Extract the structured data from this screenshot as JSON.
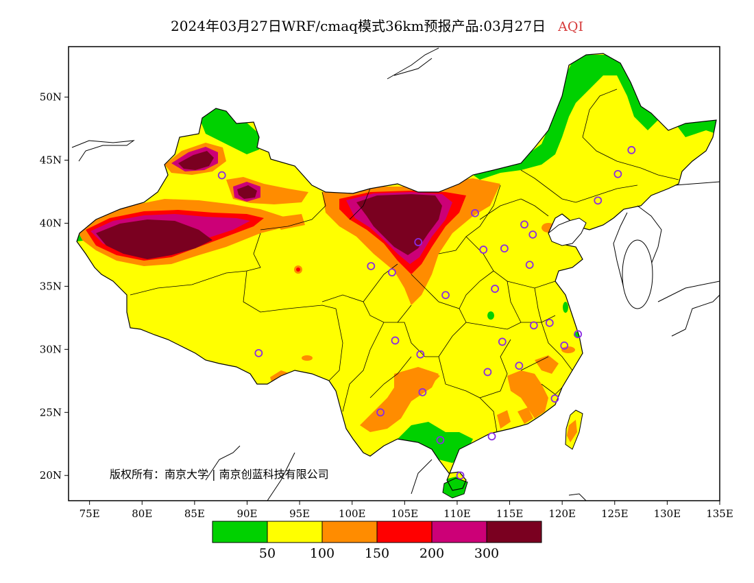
{
  "title": {
    "main": "2024年03月27日WRF/cmaq模式36km预报产品:03月27日",
    "variable": "AQI"
  },
  "axes": {
    "lon": {
      "min": 73,
      "max": 135,
      "ticks": [
        75,
        80,
        85,
        90,
        95,
        100,
        105,
        110,
        115,
        120,
        125,
        130,
        135
      ],
      "labels": [
        "75E",
        "80E",
        "85E",
        "90E",
        "95E",
        "100E",
        "105E",
        "110E",
        "115E",
        "120E",
        "125E",
        "130E",
        "135E"
      ]
    },
    "lat": {
      "min": 18,
      "max": 54,
      "ticks": [
        20,
        25,
        30,
        35,
        40,
        45,
        50
      ],
      "labels": [
        "20N",
        "25N",
        "30N",
        "35N",
        "40N",
        "45N",
        "50N"
      ]
    }
  },
  "copyright": "版权所有：南京大学 | 南京创蓝科技有限公司",
  "colorbar": {
    "colors": [
      "#00d100",
      "#ffff00",
      "#ff8c00",
      "#ff0000",
      "#cc0077",
      "#7a0020"
    ],
    "labels": [
      "50",
      "100",
      "150",
      "200",
      "300"
    ]
  },
  "colors": {
    "ocean": "#ffffff",
    "outline": "#000000",
    "station": "#8a2be2"
  },
  "chart_data": {
    "type": "heatmap",
    "variable": "AQI",
    "bins": [
      {
        "range": "<50",
        "color": "#00d100"
      },
      {
        "range": "50-100",
        "color": "#ffff00"
      },
      {
        "range": "100-150",
        "color": "#ff8c00"
      },
      {
        "range": "150-200",
        "color": "#ff0000"
      },
      {
        "range": "200-300",
        "color": "#cc0077"
      },
      {
        "range": ">300",
        "color": "#7a0020"
      }
    ],
    "regions": [
      {
        "lon": 80,
        "lat": 39.5,
        "level": ">300"
      },
      {
        "lon": 106,
        "lat": 40.5,
        "level": ">300"
      },
      {
        "lon": 85.5,
        "lat": 45.3,
        "level": ">300"
      },
      {
        "lon": 90,
        "lat": 42.5,
        "level": "200-300"
      },
      {
        "lon": 125,
        "lat": 48,
        "level": "<50"
      },
      {
        "lon": 109,
        "lat": 22,
        "level": "<50"
      },
      {
        "lon": 105,
        "lat": 27,
        "level": "100-150"
      },
      {
        "lon": 118,
        "lat": 27,
        "level": "100-150"
      }
    ],
    "stations": [
      [
        87.6,
        43.8
      ],
      [
        101.8,
        36.6
      ],
      [
        103.8,
        36.1
      ],
      [
        111.7,
        40.8
      ],
      [
        112.5,
        37.9
      ],
      [
        114.5,
        38.0
      ],
      [
        116.4,
        39.9
      ],
      [
        117.2,
        39.1
      ],
      [
        116.9,
        36.7
      ],
      [
        113.6,
        34.8
      ],
      [
        117.3,
        31.9
      ],
      [
        118.8,
        32.1
      ],
      [
        121.5,
        31.2
      ],
      [
        120.2,
        30.3
      ],
      [
        114.3,
        30.6
      ],
      [
        112.9,
        28.2
      ],
      [
        115.9,
        28.7
      ],
      [
        119.3,
        26.1
      ],
      [
        113.3,
        23.1
      ],
      [
        110.3,
        20.0
      ],
      [
        108.4,
        22.8
      ],
      [
        106.7,
        26.6
      ],
      [
        102.7,
        25.0
      ],
      [
        104.1,
        30.7
      ],
      [
        106.5,
        29.6
      ],
      [
        108.9,
        34.3
      ],
      [
        91.1,
        29.7
      ],
      [
        106.3,
        38.5
      ],
      [
        125.3,
        43.9
      ],
      [
        126.6,
        45.8
      ],
      [
        123.4,
        41.8
      ]
    ]
  }
}
